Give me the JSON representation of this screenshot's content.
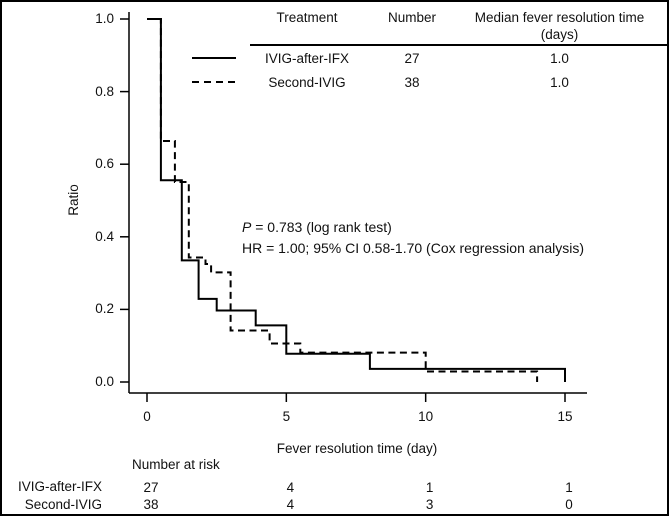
{
  "figure": {
    "background": "#ffffff",
    "line_color": "#000000",
    "text_color": "#111111"
  },
  "legend_table": {
    "header": {
      "treatment": "Treatment",
      "number": "Number",
      "median_line1": "Median fever resolution time",
      "median_line2": "(days)"
    },
    "rows": [
      {
        "line_style": "solid",
        "treatment": "IVIG-after-IFX",
        "number": "27",
        "median": "1.0"
      },
      {
        "line_style": "dashed",
        "treatment": "Second-IVIG",
        "number": "38",
        "median": "1.0"
      }
    ]
  },
  "annotation": {
    "p_italic": "P",
    "p_rest": " = 0.783 (log rank test)",
    "hr_line": "HR = 1.00; 95% CI 0.58-1.70 (Cox regression analysis)"
  },
  "y_axis": {
    "label": "Ratio",
    "tick_labels": [
      "1.0",
      "0.8",
      "0.6",
      "0.4",
      "0.2",
      "0.0"
    ]
  },
  "x_axis": {
    "label": "Fever resolution time (day)",
    "tick_labels": [
      "0",
      "5",
      "10",
      "15"
    ]
  },
  "risk_table": {
    "title": "Number at risk",
    "rows": [
      {
        "label": "IVIG-after-IFX",
        "values": [
          "27",
          "4",
          "1",
          "1"
        ]
      },
      {
        "label": "Second-IVIG",
        "values": [
          "38",
          "4",
          "3",
          "0"
        ]
      }
    ]
  },
  "chart_data": {
    "type": "line",
    "subtype": "kaplan-meier-step",
    "xlabel": "Fever resolution time (day)",
    "ylabel": "Ratio",
    "xlim": [
      0,
      15
    ],
    "ylim": [
      0.0,
      1.0
    ],
    "x_ticks": [
      0,
      5,
      10,
      15
    ],
    "y_ticks": [
      1.0,
      0.8,
      0.6,
      0.4,
      0.2,
      0.0
    ],
    "grid": false,
    "legend_position": "top-table",
    "series": [
      {
        "name": "IVIG-after-IFX",
        "n": 27,
        "median_fever_resolution_days": 1.0,
        "line": "solid",
        "steps": [
          [
            0,
            1.0
          ],
          [
            0.5,
            0.556
          ],
          [
            1.25,
            0.335
          ],
          [
            1.85,
            0.229
          ],
          [
            2.5,
            0.197
          ],
          [
            3.9,
            0.156
          ],
          [
            5.0,
            0.078
          ],
          [
            8.0,
            0.036
          ],
          [
            15.0,
            0.0
          ]
        ]
      },
      {
        "name": "Second-IVIG",
        "n": 38,
        "median_fever_resolution_days": 1.0,
        "line": "dashed",
        "steps": [
          [
            0,
            1.0
          ],
          [
            0.5,
            0.664
          ],
          [
            1.0,
            0.551
          ],
          [
            1.5,
            0.343
          ],
          [
            2.1,
            0.325
          ],
          [
            2.3,
            0.302
          ],
          [
            3.0,
            0.142
          ],
          [
            4.4,
            0.106
          ],
          [
            5.5,
            0.081
          ],
          [
            10.0,
            0.029
          ],
          [
            14.0,
            0.0
          ]
        ]
      }
    ],
    "stats": {
      "p_value": 0.783,
      "p_test": "log rank test",
      "hazard_ratio": 1.0,
      "ci_95": "0.58-1.70",
      "model": "Cox regression analysis"
    },
    "number_at_risk": {
      "times": [
        0,
        5,
        10,
        15
      ],
      "IVIG-after-IFX": [
        27,
        4,
        1,
        1
      ],
      "Second-IVIG": [
        38,
        4,
        3,
        0
      ]
    }
  }
}
